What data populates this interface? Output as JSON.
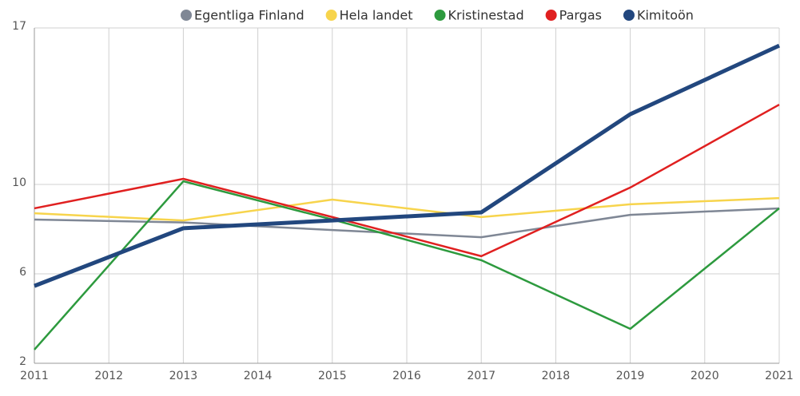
{
  "chart_data": {
    "type": "line",
    "x": [
      2011,
      2013,
      2015,
      2017,
      2019,
      2021
    ],
    "series": [
      {
        "name": "Egentliga Finland",
        "color": "#7f8795",
        "values": [
          8.43,
          8.3,
          7.96,
          7.64,
          8.64,
          8.93
        ]
      },
      {
        "name": "Hela landet",
        "color": "#f7d44c",
        "values": [
          8.71,
          8.39,
          9.32,
          8.54,
          9.11,
          9.39
        ]
      },
      {
        "name": "Kristinestad",
        "color": "#2d9a3e",
        "values": [
          2.61,
          10.14,
          8.43,
          6.61,
          3.54,
          8.93
        ]
      },
      {
        "name": "Pargas",
        "color": "#e02020",
        "values": [
          8.93,
          10.25,
          8.54,
          6.79,
          9.86,
          13.57
        ]
      },
      {
        "name": "Kimitoön",
        "color": "#22477e",
        "values": [
          5.46,
          8.04,
          8.39,
          8.75,
          13.14,
          16.21
        ]
      }
    ],
    "xlim": [
      2011,
      2021
    ],
    "xticks": [
      2011,
      2012,
      2013,
      2014,
      2015,
      2016,
      2017,
      2018,
      2019,
      2020,
      2021
    ],
    "ylim": [
      2,
      17
    ],
    "yticks": [
      2,
      6,
      10,
      17
    ],
    "grid": true,
    "legend": "top"
  }
}
